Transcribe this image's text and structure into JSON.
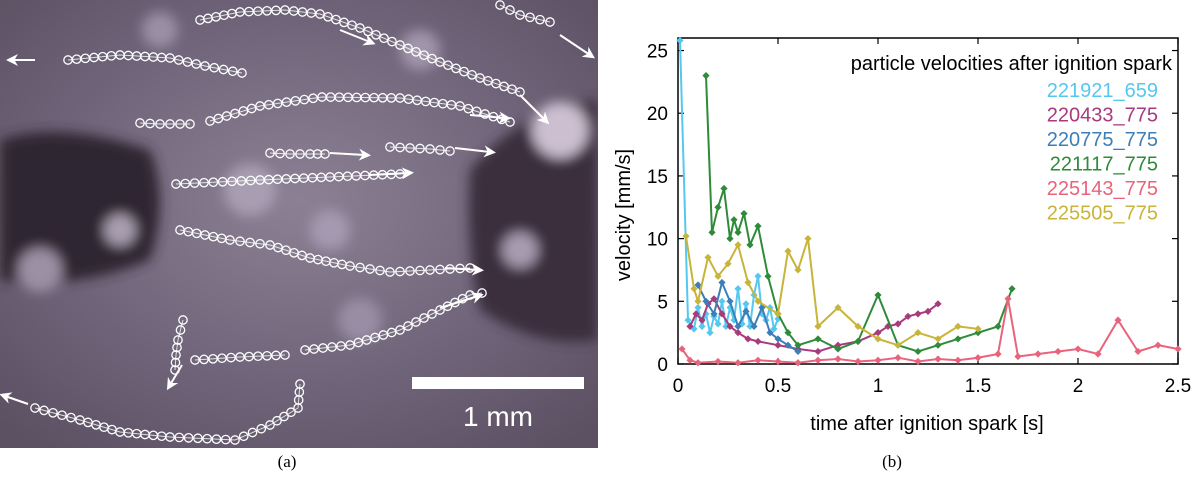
{
  "panel_a": {
    "caption": "(a)",
    "scale_bar_label": "1 mm",
    "background_colors": [
      "#6f6478",
      "#3a2d3c",
      "#b7aebc"
    ]
  },
  "panel_b": {
    "caption": "(b)"
  },
  "chart_data": {
    "type": "line",
    "title": "particle velocities after ignition spark",
    "xlabel": "time after ignition spark [s]",
    "ylabel": "velocity [mm/s]",
    "xlim": [
      0,
      2.5
    ],
    "ylim": [
      0,
      26
    ],
    "xticks": [
      0,
      0.5,
      1,
      1.5,
      2,
      2.5
    ],
    "yticks": [
      0,
      5,
      10,
      15,
      20,
      25
    ],
    "legend_position": "top-right",
    "marker": "diamond",
    "series": [
      {
        "name": "221921_659",
        "color": "#55c8f0",
        "x": [
          0.01,
          0.05,
          0.08,
          0.1,
          0.12,
          0.14,
          0.16,
          0.18,
          0.2,
          0.22,
          0.24,
          0.26,
          0.28,
          0.3,
          0.32,
          0.34,
          0.36,
          0.38,
          0.4,
          0.42,
          0.44,
          0.46,
          0.48,
          0.5
        ],
        "y": [
          25.8,
          3.5,
          2.8,
          4.5,
          3.0,
          4.0,
          2.5,
          3.8,
          3.2,
          5.0,
          3.0,
          4.5,
          3.5,
          6.0,
          3.2,
          4.8,
          3.0,
          5.5,
          7.0,
          4.0,
          3.5,
          4.5,
          2.8,
          3.6
        ]
      },
      {
        "name": "220433_775",
        "color": "#a83b7c",
        "x": [
          0.06,
          0.09,
          0.12,
          0.15,
          0.18,
          0.22,
          0.26,
          0.3,
          0.35,
          0.4,
          0.5,
          0.6,
          0.7,
          0.8,
          0.9,
          1.0,
          1.05,
          1.1,
          1.15,
          1.2,
          1.25,
          1.3
        ],
        "y": [
          3.0,
          4.0,
          3.5,
          4.8,
          5.2,
          4.0,
          3.0,
          2.5,
          2.0,
          1.8,
          1.5,
          1.2,
          1.0,
          1.5,
          1.8,
          2.5,
          3.0,
          3.2,
          3.8,
          4.0,
          4.2,
          4.8
        ]
      },
      {
        "name": "220775_775",
        "color": "#3c7fb8",
        "x": [
          0.1,
          0.14,
          0.18,
          0.22,
          0.26,
          0.3,
          0.34,
          0.38,
          0.42,
          0.46,
          0.5,
          0.55,
          0.6
        ],
        "y": [
          6.3,
          5.0,
          4.0,
          6.5,
          5.0,
          3.0,
          4.2,
          3.0,
          4.5,
          2.5,
          2.0,
          1.5,
          1.0
        ]
      },
      {
        "name": "221117_775",
        "color": "#2e8b3a",
        "x": [
          0.14,
          0.17,
          0.2,
          0.23,
          0.26,
          0.28,
          0.3,
          0.33,
          0.36,
          0.4,
          0.45,
          0.5,
          0.55,
          0.6,
          0.7,
          0.8,
          0.9,
          1.0,
          1.1,
          1.2,
          1.3,
          1.4,
          1.5,
          1.6,
          1.67
        ],
        "y": [
          23.0,
          10.5,
          12.5,
          14.0,
          10.0,
          11.5,
          10.5,
          12.0,
          9.5,
          11.0,
          7.0,
          4.0,
          2.5,
          1.5,
          2.0,
          1.2,
          1.8,
          5.5,
          1.5,
          1.0,
          1.5,
          2.0,
          2.5,
          3.0,
          6.0
        ]
      },
      {
        "name": "225143_775",
        "color": "#e8647c",
        "x": [
          0.02,
          0.06,
          0.1,
          0.2,
          0.3,
          0.4,
          0.5,
          0.6,
          0.7,
          0.8,
          0.9,
          1.0,
          1.1,
          1.2,
          1.3,
          1.4,
          1.5,
          1.6,
          1.65,
          1.7,
          1.8,
          1.9,
          2.0,
          2.1,
          2.2,
          2.3,
          2.4,
          2.5
        ],
        "y": [
          1.2,
          0.3,
          0.1,
          0.2,
          0.1,
          0.3,
          0.2,
          0.1,
          0.3,
          0.4,
          0.2,
          0.3,
          0.5,
          0.2,
          0.4,
          0.3,
          0.5,
          0.8,
          5.2,
          0.6,
          0.8,
          1.0,
          1.2,
          0.8,
          3.5,
          1.0,
          1.5,
          1.2
        ]
      },
      {
        "name": "225505_775",
        "color": "#c8b43a",
        "x": [
          0.04,
          0.08,
          0.1,
          0.15,
          0.2,
          0.25,
          0.3,
          0.35,
          0.4,
          0.5,
          0.55,
          0.6,
          0.65,
          0.7,
          0.8,
          0.9,
          1.0,
          1.1,
          1.2,
          1.3,
          1.4,
          1.5
        ],
        "y": [
          10.2,
          6.0,
          5.0,
          8.5,
          7.0,
          8.0,
          9.5,
          6.5,
          5.0,
          4.0,
          9.0,
          7.5,
          10.0,
          3.0,
          4.5,
          3.0,
          2.0,
          1.5,
          2.5,
          2.0,
          3.0,
          2.8
        ]
      }
    ]
  }
}
